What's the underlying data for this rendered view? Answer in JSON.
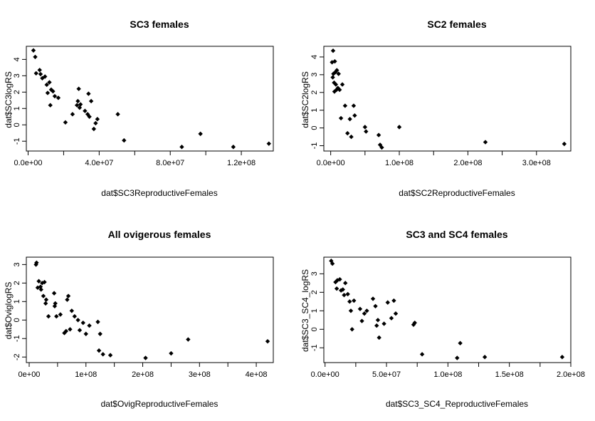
{
  "chart_data": [
    {
      "type": "scatter",
      "title": "SC3 females",
      "xlabel": "dat$SC3ReproductiveFemales",
      "ylabel": "dat$SC3logRS",
      "xlim": [
        -1000000,
        138000000
      ],
      "ylim": [
        -1.6,
        4.8
      ],
      "xticks": [
        0,
        40000000,
        80000000,
        120000000
      ],
      "xtick_labels": [
        "0.0e+00",
        "4.0e+07",
        "8.0e+07",
        "1.2e+08"
      ],
      "yticks": [
        -1,
        0,
        1,
        2,
        3,
        4
      ],
      "ytick_labels": [
        "-1",
        "0",
        "1",
        "2",
        "3",
        "4"
      ],
      "grid": false,
      "x": [
        3000000,
        4000000,
        4500000,
        6500000,
        7000000,
        8000000,
        9500000,
        10500000,
        11000000,
        12000000,
        12500000,
        13000000,
        14000000,
        15000000,
        17000000,
        21000000,
        25000000,
        27500000,
        28000000,
        28500000,
        29000000,
        29500000,
        32000000,
        33500000,
        34000000,
        34500000,
        35500000,
        37000000,
        38000000,
        39000000,
        50500000,
        54000000,
        86500000,
        97000000,
        115500000,
        135500000
      ],
      "y": [
        4.55,
        4.15,
        3.15,
        3.35,
        3.1,
        2.85,
        2.95,
        2.45,
        1.95,
        2.6,
        1.2,
        2.15,
        2.05,
        1.75,
        1.65,
        0.15,
        0.65,
        1.2,
        1.45,
        2.2,
        1.05,
        1.25,
        0.85,
        0.65,
        1.9,
        0.5,
        1.45,
        -0.25,
        0.1,
        0.35,
        0.65,
        -0.95,
        -1.35,
        -0.55,
        -1.35,
        -1.15
      ]
    },
    {
      "type": "scatter",
      "title": "SC2 females",
      "xlabel": "dat$SC2ReproductiveFemales",
      "ylabel": "dat$SC2logRS",
      "xlim": [
        -10000000,
        350000000
      ],
      "ylim": [
        -1.3,
        4.6
      ],
      "xticks": [
        0,
        100000000,
        200000000,
        300000000
      ],
      "xtick_labels": [
        "0.0e+00",
        "1.0e+08",
        "2.0e+08",
        "3.0e+08"
      ],
      "yticks": [
        -1,
        0,
        1,
        2,
        3,
        4
      ],
      "ytick_labels": [
        "-1",
        "0",
        "1",
        "2",
        "3",
        "4"
      ],
      "grid": false,
      "x": [
        2000000,
        3000000,
        3500000,
        4000000,
        5000000,
        5500000,
        6000000,
        7000000,
        7500000,
        8500000,
        9000000,
        10500000,
        11500000,
        13000000,
        15000000,
        17000000,
        21000000,
        24500000,
        28000000,
        30000000,
        33500000,
        35000000,
        50000000,
        51500000,
        70000000,
        72000000,
        74500000,
        100000000,
        225500000,
        340500000
      ],
      "y": [
        3.7,
        2.85,
        4.35,
        3.05,
        2.55,
        2.05,
        3.75,
        3.15,
        2.45,
        2.15,
        3.25,
        2.25,
        3.05,
        2.15,
        0.55,
        2.45,
        1.25,
        -0.3,
        0.5,
        -0.5,
        1.25,
        0.7,
        0.05,
        -0.2,
        -0.4,
        -0.95,
        -1.1,
        0.05,
        -0.8,
        -0.9
      ]
    },
    {
      "type": "scatter",
      "title": "All ovigerous females",
      "xlabel": "dat$OvigReproductiveFemales",
      "ylabel": "dat$OviglogRS",
      "xlim": [
        -5000000,
        430000000
      ],
      "ylim": [
        -2.3,
        3.4
      ],
      "xticks": [
        0,
        100000000,
        200000000,
        300000000,
        400000000
      ],
      "xtick_labels": [
        "0e+00",
        "1e+08",
        "2e+08",
        "3e+08",
        "4e+08"
      ],
      "yticks": [
        -2,
        -1,
        0,
        1,
        2,
        3
      ],
      "ytick_labels": [
        "-2",
        "-1",
        "0",
        "1",
        "2",
        "3"
      ],
      "grid": false,
      "x": [
        12000000,
        13000000,
        15000000,
        17000000,
        20000000,
        21000000,
        23000000,
        25000000,
        27000000,
        29000000,
        30000000,
        34000000,
        44000000,
        45000000,
        46000000,
        48000000,
        55000000,
        62000000,
        65000000,
        67000000,
        69000000,
        72000000,
        75000000,
        80000000,
        86000000,
        89000000,
        95000000,
        100000000,
        106000000,
        121000000,
        123000000,
        125000000,
        130000000,
        143000000,
        205000000,
        250000000,
        280000000,
        420000000
      ],
      "y": [
        3.0,
        3.1,
        1.75,
        2.1,
        1.8,
        1.65,
        2.0,
        1.3,
        2.05,
        0.9,
        1.1,
        0.2,
        1.45,
        0.75,
        0.9,
        0.2,
        0.3,
        -0.7,
        -0.6,
        1.1,
        1.3,
        -0.5,
        0.5,
        0.2,
        0.0,
        -0.55,
        -0.15,
        -0.75,
        -0.3,
        -0.1,
        -1.65,
        -0.75,
        -1.85,
        -1.9,
        -2.05,
        -1.8,
        -1.05,
        -1.15
      ]
    },
    {
      "type": "scatter",
      "title": "SC3 and SC4 females",
      "xlabel": "dat$SC3_SC4_ReproductiveFemales",
      "ylabel": "dat$SC3_SC4_logRS",
      "xlim": [
        -1000000,
        200000000
      ],
      "ylim": [
        -1.8,
        3.9
      ],
      "xticks": [
        0,
        50000000,
        100000000,
        150000000,
        200000000
      ],
      "xtick_labels": [
        "0.0e+00",
        "5.0e+07",
        "1.0e+08",
        "1.5e+08",
        "2.0e+08"
      ],
      "yticks": [
        -1,
        0,
        1,
        2,
        3
      ],
      "ytick_labels": [
        "-1",
        "0",
        "1",
        "2",
        "3"
      ],
      "grid": false,
      "x": [
        5000000,
        6000000,
        8500000,
        9500000,
        10000000,
        12000000,
        13000000,
        14500000,
        15500000,
        16500000,
        18500000,
        20000000,
        21000000,
        22000000,
        23500000,
        28500000,
        30000000,
        32000000,
        34000000,
        39000000,
        41000000,
        42000000,
        43000000,
        44000000,
        48000000,
        51000000,
        54000000,
        56000000,
        57500000,
        72000000,
        73000000,
        79000000,
        107500000,
        110000000,
        130000000,
        193000000
      ],
      "y": [
        3.7,
        3.55,
        2.55,
        2.2,
        2.65,
        2.7,
        2.1,
        2.15,
        1.85,
        2.5,
        1.9,
        1.5,
        1.0,
        0.0,
        1.55,
        1.1,
        0.45,
        0.85,
        1.0,
        1.65,
        1.25,
        0.2,
        0.5,
        -0.45,
        0.3,
        1.45,
        0.6,
        1.55,
        0.85,
        0.25,
        0.35,
        -1.35,
        -1.55,
        -0.75,
        -1.5,
        -1.5
      ]
    }
  ]
}
